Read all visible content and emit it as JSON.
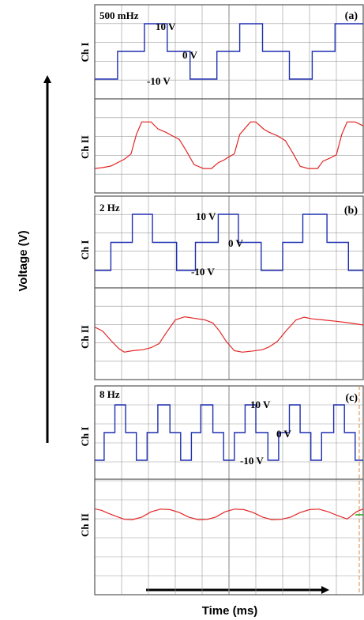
{
  "y_axis_title": "Voltage (V)",
  "x_axis_title": "Time (ms)",
  "colors": {
    "ch1": "#1f2fb0",
    "ch2": "#e32626",
    "grid": "#9a9a9a",
    "frame": "#555555",
    "cursor": "#e08a3c",
    "marker": "#22aa22"
  },
  "chart_data": [
    {
      "type": "line",
      "panel_label": "(a)",
      "frequency_label": "500 mHz",
      "ch1_label": "Ch I",
      "ch2_label": "Ch II",
      "level_labels": {
        "high": "10 V",
        "zero": "0 V",
        "low": "-10 V"
      },
      "grid": true,
      "ch1": {
        "x": [
          0,
          0.17,
          0.17,
          0.37,
          0.37,
          0.54,
          0.54,
          0.71,
          0.71,
          0.91,
          0.91,
          1.08,
          1.08,
          1.25,
          1.25,
          1.45,
          1.45,
          1.62,
          1.62,
          1.79,
          1.79,
          2.0
        ],
        "y": [
          -10,
          -10,
          0,
          0,
          10,
          10,
          0,
          0,
          -10,
          -10,
          0,
          0,
          10,
          10,
          0,
          0,
          -10,
          -10,
          0,
          0,
          10,
          10
        ]
      },
      "ch2": {
        "x": [
          0,
          0.06,
          0.12,
          0.22,
          0.27,
          0.31,
          0.35,
          0.42,
          0.47,
          0.53,
          0.58,
          0.63,
          0.68,
          0.74,
          0.81,
          0.87,
          0.92,
          0.96,
          1.0,
          1.04,
          1.08,
          1.16,
          1.2,
          1.26,
          1.3,
          1.36,
          1.42,
          1.48,
          1.53,
          1.59,
          1.66,
          1.7,
          1.75,
          1.8,
          1.84,
          1.88,
          1.94,
          2.0
        ],
        "y": [
          -9.4,
          -9,
          -8.4,
          -5.6,
          -3.5,
          4.5,
          9.6,
          9.6,
          6.8,
          5.4,
          3.9,
          2.5,
          -2,
          -7.8,
          -9.4,
          -9.4,
          -7,
          -6,
          -4.6,
          -3.4,
          4.5,
          9.6,
          9.6,
          6.6,
          5.4,
          4,
          2,
          -3.5,
          -8.5,
          -9.4,
          -9.4,
          -6.4,
          -5.2,
          -3.8,
          4.5,
          9.6,
          9.6,
          8
        ]
      }
    },
    {
      "type": "line",
      "panel_label": "(b)",
      "frequency_label": "2 Hz",
      "ch1_label": "Ch I",
      "ch2_label": "Ch II",
      "level_labels": {
        "high": "10 V",
        "zero": "0 V",
        "low": "-10 V"
      },
      "grid": true,
      "ch1": {
        "x": [
          0,
          0.12,
          0.12,
          0.28,
          0.28,
          0.43,
          0.43,
          0.61,
          0.61,
          0.75,
          0.75,
          0.92,
          0.92,
          1.07,
          1.07,
          1.24,
          1.24,
          1.4,
          1.4,
          1.55,
          1.55,
          1.73,
          1.73,
          1.89,
          1.89,
          2.0
        ],
        "y": [
          -10,
          -10,
          0,
          0,
          10,
          10,
          0,
          0,
          -10,
          -10,
          0,
          0,
          10,
          10,
          0,
          0,
          -10,
          -10,
          0,
          0,
          10,
          10,
          0,
          0,
          -10,
          -10
        ]
      },
      "ch2": {
        "x": [
          0,
          0.06,
          0.12,
          0.18,
          0.22,
          0.28,
          0.36,
          0.42,
          0.48,
          0.53,
          0.6,
          0.67,
          0.75,
          0.82,
          0.88,
          0.93,
          0.98,
          1.04,
          1.1,
          1.18,
          1.25,
          1.3,
          1.36,
          1.43,
          1.5,
          1.56,
          1.62,
          1.7,
          1.8,
          1.9,
          2.0
        ],
        "y": [
          4,
          2,
          -2.5,
          -6.5,
          -8.2,
          -7.5,
          -7,
          -6,
          -4,
          1,
          7.5,
          9,
          8.2,
          7.5,
          6,
          2,
          -3,
          -7.5,
          -8.2,
          -7.6,
          -7,
          -5.6,
          -3,
          2.5,
          7.5,
          8.8,
          8,
          7.5,
          6.8,
          6,
          5
        ]
      }
    },
    {
      "type": "line",
      "panel_label": "(c)",
      "frequency_label": "8 Hz",
      "ch1_label": "Ch I",
      "ch2_label": "Ch II",
      "level_labels": {
        "high": "10 V",
        "zero": "0 V",
        "low": "-10 V"
      },
      "grid": true,
      "ch1": {
        "x": [
          0,
          0.07,
          0.07,
          0.15,
          0.15,
          0.23,
          0.23,
          0.31,
          0.31,
          0.39,
          0.39,
          0.47,
          0.47,
          0.56,
          0.56,
          0.64,
          0.64,
          0.72,
          0.72,
          0.79,
          0.79,
          0.88,
          0.88,
          0.96,
          0.96,
          1.04,
          1.04,
          1.12,
          1.12,
          1.2,
          1.2,
          1.29,
          1.29,
          1.37,
          1.37,
          1.45,
          1.45,
          1.53,
          1.53,
          1.61,
          1.61,
          1.69,
          1.69,
          1.78,
          1.78,
          1.86,
          1.86,
          1.94,
          1.94,
          2.0
        ],
        "y": [
          -10,
          -10,
          0,
          0,
          10,
          10,
          0,
          0,
          -10,
          -10,
          0,
          0,
          10,
          10,
          0,
          0,
          -10,
          -10,
          0,
          0,
          10,
          10,
          0,
          0,
          -10,
          -10,
          0,
          0,
          10,
          10,
          0,
          0,
          -10,
          -10,
          0,
          0,
          10,
          10,
          0,
          0,
          -10,
          -10,
          0,
          0,
          10,
          10,
          0,
          0,
          -10,
          -10
        ]
      },
      "ch2": {
        "x": [
          0,
          0.05,
          0.1,
          0.16,
          0.22,
          0.28,
          0.35,
          0.42,
          0.49,
          0.56,
          0.63,
          0.7,
          0.77,
          0.84,
          0.9,
          0.97,
          1.04,
          1.11,
          1.18,
          1.25,
          1.32,
          1.39,
          1.46,
          1.53,
          1.6,
          1.67,
          1.74,
          1.81,
          1.88,
          1.95,
          2.0
        ],
        "y": [
          4,
          3,
          1,
          -1,
          -3,
          -3.2,
          -1.5,
          2,
          3.8,
          3.5,
          1.5,
          -1.5,
          -3.2,
          -3,
          -1.5,
          2,
          3.8,
          3.5,
          1.5,
          -1.5,
          -3.2,
          -3,
          -1.5,
          1.5,
          3.5,
          3.8,
          2,
          -0.5,
          -2.8,
          2,
          4
        ]
      }
    }
  ]
}
